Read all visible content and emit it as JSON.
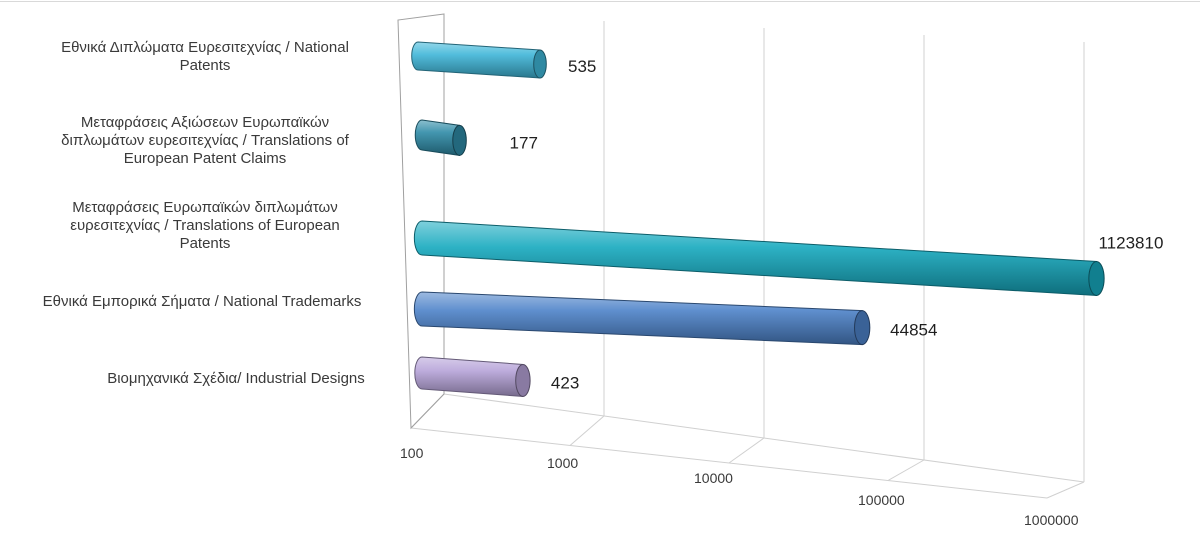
{
  "chart_data": {
    "type": "bar",
    "orientation": "horizontal",
    "style": "3d-cylinder",
    "x_scale": "log",
    "xlim": [
      100,
      1000000
    ],
    "ticks": [
      "100",
      "1000",
      "10000",
      "100000",
      "1000000"
    ],
    "tick_values": [
      100,
      1000,
      10000,
      100000,
      1000000
    ],
    "categories": [
      [
        "Εθνικά Διπλώματα Ευρεσιτεχνίας / National",
        "Patents"
      ],
      [
        "Μεταφράσεις Αξιώσεων Ευρωπαϊκών",
        "διπλωμάτων ευρεσιτεχνίας / Translations of",
        "European Patent Claims"
      ],
      [
        "Μεταφράσεις Ευρωπαϊκών διπλωμάτων",
        "ευρεσιτεχνίας / Translations of European",
        "Patents"
      ],
      [
        "Εθνικά Εμπορικά Σήματα / National Trademarks"
      ],
      [
        "Βιομηχανικά Σχέδια/ Industrial Designs"
      ]
    ],
    "values": [
      535,
      177,
      1123810,
      44854,
      423
    ],
    "value_labels": [
      "535",
      "177",
      "1123810",
      "44854",
      "423"
    ],
    "colors": [
      "#3fb6d8",
      "#2e8aa6",
      "#16a9bf",
      "#4d82c9",
      "#b6a3d8"
    ],
    "grid": true,
    "legend": "none",
    "title": "",
    "xlabel": "",
    "ylabel": ""
  }
}
